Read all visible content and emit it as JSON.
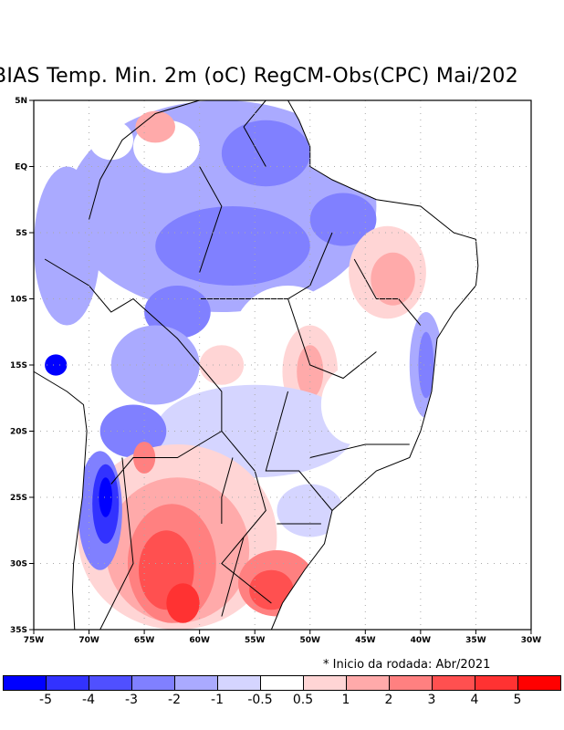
{
  "title": "BIAS Temp. Min. 2m (oC) RegCM-Obs(CPC) Mai/202",
  "note": "* Inicio da rodada: Abr/2021",
  "map": {
    "lat_labels": [
      "5N",
      "EQ",
      "5S",
      "10S",
      "15S",
      "20S",
      "25S",
      "30S",
      "35S"
    ],
    "lat_values": [
      5,
      0,
      -5,
      -10,
      -15,
      -20,
      -25,
      -30,
      -35
    ],
    "lon_labels": [
      "75W",
      "70W",
      "65W",
      "60W",
      "55W",
      "50W",
      "45W",
      "40W",
      "35W",
      "30W"
    ],
    "lon_values": [
      -75,
      -70,
      -65,
      -60,
      -55,
      -50,
      -45,
      -40,
      -35,
      -30
    ]
  },
  "colorbar": {
    "colors": [
      "#0000ff",
      "#3232ff",
      "#5050ff",
      "#8080ff",
      "#aaaaff",
      "#d5d5ff",
      "#ffffff",
      "#ffd5d5",
      "#ffaaaa",
      "#ff8080",
      "#ff5050",
      "#ff3232",
      "#ff0000"
    ],
    "labels": [
      "-5",
      "-4",
      "-3",
      "-2",
      "-1",
      "-0.5",
      "0.5",
      "1",
      "2",
      "3",
      "4",
      "5"
    ]
  }
}
